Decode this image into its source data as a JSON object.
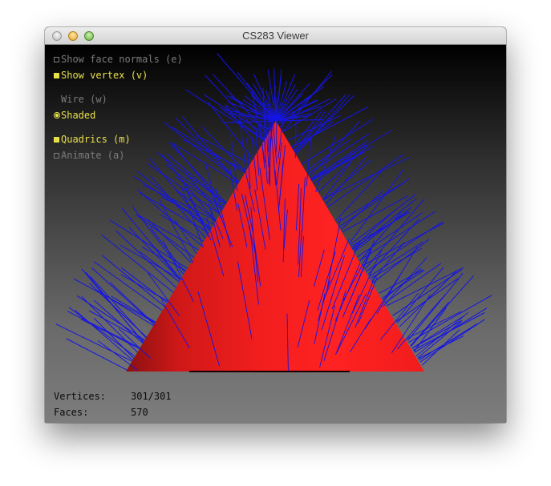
{
  "window": {
    "title": "CS283 Viewer"
  },
  "options": {
    "face_normals": {
      "label": "Show face normals (e)",
      "checked": false
    },
    "vertex_normals": {
      "label": "Show vertex (v)",
      "checked": true
    },
    "wire": {
      "label": "Wire (w)",
      "selected": false
    },
    "shaded": {
      "label": "Shaded",
      "selected": true
    },
    "quadrics": {
      "label": "Quadrics (m)",
      "checked": true
    },
    "animate": {
      "label": "Animate (a)",
      "checked": false
    }
  },
  "stats": {
    "vertices_label": "Vertices:",
    "vertices_value": "301/301",
    "faces_label": "Faces:",
    "faces_value": "570"
  },
  "colors": {
    "mesh": "#ff2020",
    "normals": "#1414e6",
    "active_text": "#e8e04a",
    "inactive_text": "#7c7c7c"
  }
}
